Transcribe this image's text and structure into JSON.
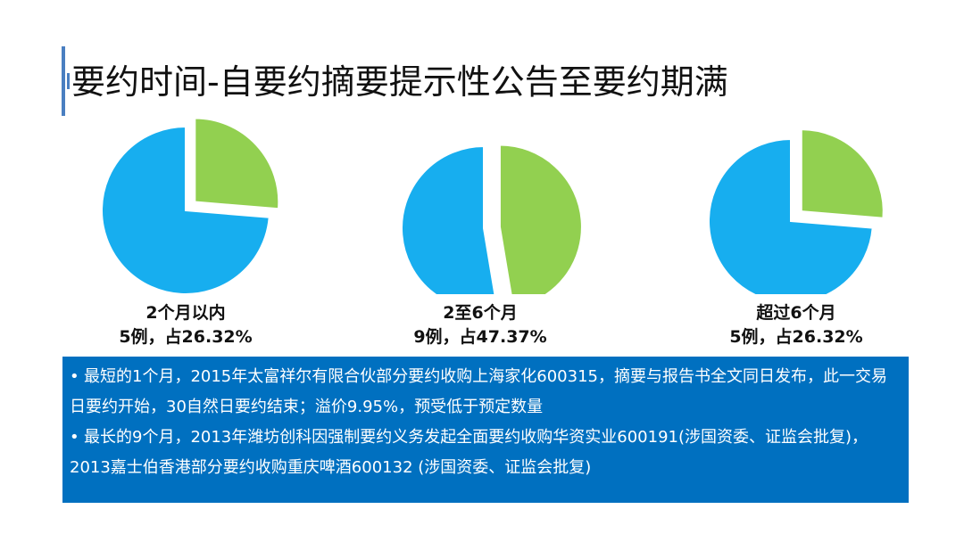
{
  "title": "要约时间-自要约摘要提示性公告至要约期满",
  "colors": {
    "accent": "#4A7FC1",
    "blue": "#17AEEF",
    "green": "#92D050",
    "box": "#0070C0"
  },
  "chart_data": [
    {
      "type": "pie",
      "title": "2个月以内",
      "caption": "5例，占26.32%",
      "slices": [
        {
          "value": 26.32,
          "color": "#92D050"
        },
        {
          "value": 73.68,
          "color": "#17AEEF"
        }
      ]
    },
    {
      "type": "pie",
      "title": "2至6个月",
      "caption": "9例，占47.37%",
      "slices": [
        {
          "value": 47.37,
          "color": "#92D050"
        },
        {
          "value": 52.63,
          "color": "#17AEEF"
        }
      ]
    },
    {
      "type": "pie",
      "title": "超过6个月",
      "caption": "5例，占26.32%",
      "slices": [
        {
          "value": 26.32,
          "color": "#92D050"
        },
        {
          "value": 73.68,
          "color": "#17AEEF"
        }
      ]
    }
  ],
  "notes": [
    "最短的1个月，2015年太富祥尔有限合伙部分要约收购上海家化600315，摘要与报告书全文同日发布，此一交易日要约开始，30自然日要约结束；溢价9.95%，预受低于预定数量",
    "最长的9个月，2013年潍坊创科因强制要约义务发起全面要约收购华资实业600191(涉国资委、证监会批复)，2013嘉士伯香港部分要约收购重庆啤酒600132 (涉国资委、证监会批复)"
  ],
  "bullet": "•"
}
